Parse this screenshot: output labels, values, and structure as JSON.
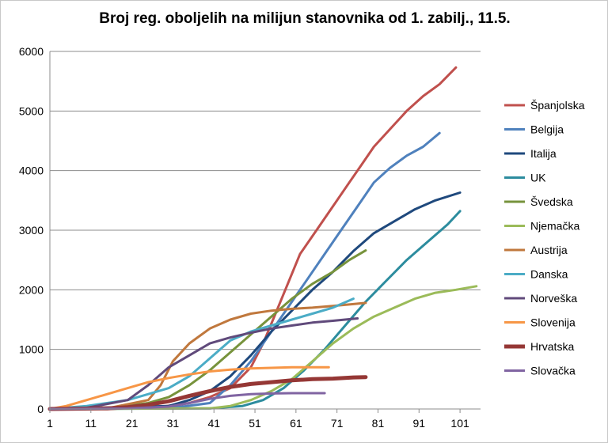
{
  "chart_data": {
    "type": "line",
    "title": "Broj reg. oboljelih na milijun stanovnika od 1. zabilj., 11.5.",
    "xlabel": "",
    "ylabel": "",
    "xlim": [
      1,
      106
    ],
    "ylim": [
      0,
      6000
    ],
    "x_ticks": [
      1,
      11,
      21,
      31,
      41,
      51,
      61,
      71,
      81,
      91,
      101
    ],
    "y_ticks": [
      0,
      1000,
      2000,
      3000,
      4000,
      5000,
      6000
    ],
    "grid": "horizontal",
    "legend_position": "right",
    "series": [
      {
        "name": "Španjolska",
        "color": "#c0504d",
        "width": 3,
        "points": [
          [
            1,
            0
          ],
          [
            25,
            10
          ],
          [
            35,
            100
          ],
          [
            40,
            200
          ],
          [
            45,
            350
          ],
          [
            50,
            700
          ],
          [
            53,
            1100
          ],
          [
            56,
            1600
          ],
          [
            59,
            2100
          ],
          [
            62,
            2600
          ],
          [
            66,
            3000
          ],
          [
            70,
            3400
          ],
          [
            74,
            3800
          ],
          [
            77,
            4100
          ],
          [
            80,
            4400
          ],
          [
            84,
            4700
          ],
          [
            88,
            5000
          ],
          [
            92,
            5250
          ],
          [
            96,
            5450
          ],
          [
            100,
            5730
          ]
        ]
      },
      {
        "name": "Belgija",
        "color": "#4f81bd",
        "width": 3,
        "points": [
          [
            1,
            0
          ],
          [
            30,
            10
          ],
          [
            40,
            100
          ],
          [
            45,
            400
          ],
          [
            50,
            800
          ],
          [
            55,
            1300
          ],
          [
            60,
            1800
          ],
          [
            64,
            2200
          ],
          [
            68,
            2600
          ],
          [
            72,
            3000
          ],
          [
            76,
            3400
          ],
          [
            80,
            3800
          ],
          [
            84,
            4050
          ],
          [
            88,
            4250
          ],
          [
            92,
            4400
          ],
          [
            96,
            4630
          ]
        ]
      },
      {
        "name": "Italija",
        "color": "#1f497d",
        "width": 3,
        "points": [
          [
            1,
            0
          ],
          [
            30,
            50
          ],
          [
            35,
            150
          ],
          [
            40,
            300
          ],
          [
            45,
            550
          ],
          [
            50,
            900
          ],
          [
            55,
            1300
          ],
          [
            60,
            1650
          ],
          [
            65,
            2000
          ],
          [
            70,
            2300
          ],
          [
            75,
            2650
          ],
          [
            80,
            2950
          ],
          [
            85,
            3150
          ],
          [
            90,
            3350
          ],
          [
            95,
            3500
          ],
          [
            101,
            3630
          ]
        ]
      },
      {
        "name": "UK",
        "color": "#2c8c9e",
        "width": 3,
        "points": [
          [
            1,
            0
          ],
          [
            40,
            10
          ],
          [
            48,
            50
          ],
          [
            53,
            150
          ],
          [
            58,
            350
          ],
          [
            63,
            650
          ],
          [
            68,
            1000
          ],
          [
            73,
            1400
          ],
          [
            78,
            1800
          ],
          [
            83,
            2150
          ],
          [
            88,
            2500
          ],
          [
            93,
            2800
          ],
          [
            98,
            3100
          ],
          [
            101,
            3320
          ]
        ]
      },
      {
        "name": "Švedska",
        "color": "#77933c",
        "width": 3,
        "points": [
          [
            1,
            0
          ],
          [
            15,
            10
          ],
          [
            25,
            100
          ],
          [
            30,
            200
          ],
          [
            35,
            400
          ],
          [
            40,
            650
          ],
          [
            45,
            950
          ],
          [
            50,
            1250
          ],
          [
            55,
            1550
          ],
          [
            60,
            1850
          ],
          [
            65,
            2100
          ],
          [
            70,
            2300
          ],
          [
            74,
            2500
          ],
          [
            78,
            2660
          ]
        ]
      },
      {
        "name": "Njemačka",
        "color": "#9bbb59",
        "width": 3,
        "points": [
          [
            1,
            0
          ],
          [
            40,
            10
          ],
          [
            45,
            50
          ],
          [
            50,
            150
          ],
          [
            55,
            300
          ],
          [
            60,
            500
          ],
          [
            65,
            800
          ],
          [
            70,
            1100
          ],
          [
            75,
            1350
          ],
          [
            80,
            1550
          ],
          [
            85,
            1700
          ],
          [
            90,
            1850
          ],
          [
            95,
            1950
          ],
          [
            100,
            2000
          ],
          [
            105,
            2060
          ]
        ]
      },
      {
        "name": "Austrija",
        "color": "#c0783d",
        "width": 3,
        "points": [
          [
            1,
            0
          ],
          [
            15,
            10
          ],
          [
            25,
            150
          ],
          [
            28,
            400
          ],
          [
            31,
            800
          ],
          [
            35,
            1100
          ],
          [
            40,
            1350
          ],
          [
            45,
            1500
          ],
          [
            50,
            1600
          ],
          [
            55,
            1650
          ],
          [
            60,
            1680
          ],
          [
            65,
            1700
          ],
          [
            70,
            1730
          ],
          [
            75,
            1760
          ],
          [
            78,
            1780
          ]
        ]
      },
      {
        "name": "Danska",
        "color": "#4bacc6",
        "width": 3,
        "points": [
          [
            1,
            0
          ],
          [
            10,
            50
          ],
          [
            20,
            150
          ],
          [
            25,
            250
          ],
          [
            30,
            350
          ],
          [
            35,
            550
          ],
          [
            40,
            850
          ],
          [
            45,
            1150
          ],
          [
            50,
            1300
          ],
          [
            55,
            1400
          ],
          [
            60,
            1500
          ],
          [
            65,
            1600
          ],
          [
            70,
            1700
          ],
          [
            75,
            1850
          ]
        ]
      },
      {
        "name": "Norveška",
        "color": "#604a7b",
        "width": 3,
        "points": [
          [
            1,
            0
          ],
          [
            10,
            20
          ],
          [
            20,
            150
          ],
          [
            25,
            400
          ],
          [
            30,
            700
          ],
          [
            35,
            900
          ],
          [
            40,
            1100
          ],
          [
            45,
            1200
          ],
          [
            50,
            1280
          ],
          [
            55,
            1350
          ],
          [
            60,
            1400
          ],
          [
            65,
            1450
          ],
          [
            70,
            1480
          ],
          [
            76,
            1520
          ]
        ]
      },
      {
        "name": "Slovenija",
        "color": "#f79646",
        "width": 3,
        "points": [
          [
            1,
            0
          ],
          [
            5,
            50
          ],
          [
            10,
            150
          ],
          [
            15,
            250
          ],
          [
            20,
            350
          ],
          [
            25,
            450
          ],
          [
            30,
            520
          ],
          [
            35,
            580
          ],
          [
            40,
            630
          ],
          [
            45,
            660
          ],
          [
            50,
            680
          ],
          [
            55,
            690
          ],
          [
            60,
            700
          ],
          [
            65,
            700
          ],
          [
            69,
            700
          ]
        ]
      },
      {
        "name": "Hrvatska",
        "color": "#953735",
        "width": 5,
        "points": [
          [
            1,
            0
          ],
          [
            15,
            10
          ],
          [
            20,
            30
          ],
          [
            25,
            70
          ],
          [
            30,
            130
          ],
          [
            35,
            220
          ],
          [
            40,
            300
          ],
          [
            45,
            370
          ],
          [
            50,
            420
          ],
          [
            55,
            450
          ],
          [
            60,
            480
          ],
          [
            65,
            500
          ],
          [
            70,
            510
          ],
          [
            75,
            530
          ],
          [
            78,
            535
          ]
        ]
      },
      {
        "name": "Slovačka",
        "color": "#8064a2",
        "width": 3,
        "points": [
          [
            1,
            0
          ],
          [
            20,
            10
          ],
          [
            30,
            40
          ],
          [
            35,
            100
          ],
          [
            40,
            170
          ],
          [
            45,
            220
          ],
          [
            50,
            250
          ],
          [
            55,
            260
          ],
          [
            60,
            265
          ],
          [
            65,
            265
          ],
          [
            68,
            265
          ]
        ]
      }
    ]
  }
}
